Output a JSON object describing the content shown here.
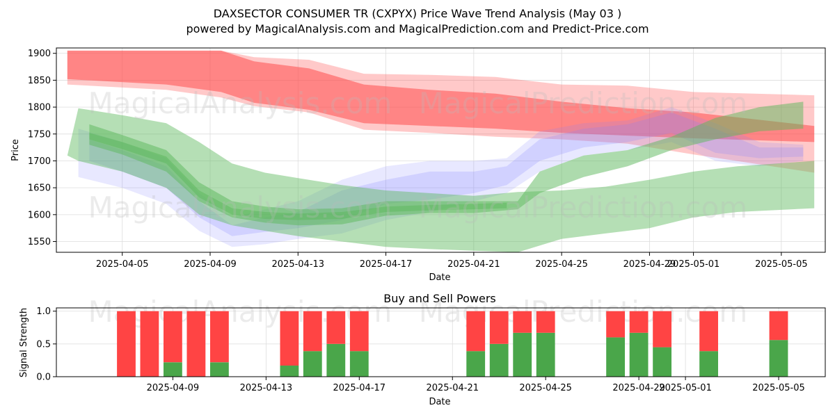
{
  "colors": {
    "red": "#ff4d4d",
    "blue": "#8080ff",
    "green": "#5cb85c",
    "bar_red": "#ff4444",
    "bar_green": "#4aa64a"
  },
  "watermarks": [
    "MagicalAnalysis.com",
    "MagicalPrediction.com"
  ],
  "chart_data": [
    {
      "type": "area",
      "title": "DAXSECTOR CONSUMER TR (CXPYX) Price Wave Trend Analysis (May 03 )",
      "subtitle": "powered by MagicalAnalysis.com and MagicalPrediction.com and Predict-Price.com",
      "xlabel": "Date",
      "ylabel": "Price",
      "xlim": [
        "2025-04-02",
        "2025-05-07"
      ],
      "ylim": [
        1530,
        1910
      ],
      "xticks": [
        "2025-04-05",
        "2025-04-09",
        "2025-04-13",
        "2025-04-17",
        "2025-04-21",
        "2025-04-25",
        "2025-04-29",
        "2025-05-01",
        "2025-05-05"
      ],
      "yticks": [
        1550,
        1600,
        1650,
        1700,
        1750,
        1800,
        1850,
        1900
      ],
      "grid": true,
      "bands": [
        {
          "color": "red",
          "opacity": 0.3,
          "x": [
            "2025-04-02.5",
            "2025-04-07",
            "2025-04-09.5",
            "2025-04-11",
            "2025-04-13.5",
            "2025-04-16",
            "2025-04-19",
            "2025-04-22",
            "2025-04-25",
            "2025-04-28",
            "2025-05-01",
            "2025-05-06.5"
          ],
          "upper": [
            1905,
            1905,
            1905,
            1893,
            1888,
            1862,
            1860,
            1856,
            1842,
            1840,
            1828,
            1822
          ],
          "lower": [
            1842,
            1832,
            1818,
            1802,
            1790,
            1758,
            1752,
            1745,
            1740,
            1732,
            1712,
            1678
          ]
        },
        {
          "color": "red",
          "opacity": 0.55,
          "x": [
            "2025-04-02.5",
            "2025-04-07",
            "2025-04-09.5",
            "2025-04-11",
            "2025-04-13.5",
            "2025-04-16",
            "2025-04-19",
            "2025-04-22",
            "2025-04-25",
            "2025-04-28",
            "2025-05-01",
            "2025-05-06.5"
          ],
          "upper": [
            1905,
            1905,
            1905,
            1885,
            1872,
            1842,
            1832,
            1825,
            1810,
            1798,
            1790,
            1765
          ],
          "lower": [
            1852,
            1842,
            1828,
            1808,
            1795,
            1770,
            1765,
            1760,
            1752,
            1747,
            1742,
            1735
          ]
        },
        {
          "color": "blue",
          "opacity": 0.18,
          "x": [
            "2025-04-03",
            "2025-04-05",
            "2025-04-07",
            "2025-04-08.5",
            "2025-04-10",
            "2025-04-11.5",
            "2025-04-13",
            "2025-04-15",
            "2025-04-17",
            "2025-04-19",
            "2025-04-21",
            "2025-04-22.5",
            "2025-04-24",
            "2025-04-26",
            "2025-04-28",
            "2025-04-30",
            "2025-05-02",
            "2025-05-04",
            "2025-05-06"
          ],
          "upper": [
            1760,
            1735,
            1705,
            1640,
            1595,
            1610,
            1625,
            1665,
            1690,
            1700,
            1700,
            1705,
            1755,
            1770,
            1775,
            1800,
            1770,
            1735,
            1730
          ],
          "lower": [
            1670,
            1650,
            1620,
            1570,
            1540,
            1545,
            1555,
            1565,
            1590,
            1605,
            1625,
            1640,
            1680,
            1710,
            1720,
            1735,
            1700,
            1690,
            1700
          ]
        },
        {
          "color": "blue",
          "opacity": 0.22,
          "x": [
            "2025-04-03.5",
            "2025-04-05",
            "2025-04-07",
            "2025-04-08.5",
            "2025-04-10",
            "2025-04-11.5",
            "2025-04-13",
            "2025-04-15",
            "2025-04-17",
            "2025-04-19",
            "2025-04-21",
            "2025-04-22.5",
            "2025-04-24",
            "2025-04-26",
            "2025-04-28",
            "2025-04-30",
            "2025-05-02",
            "2025-05-04",
            "2025-05-06"
          ],
          "upper": [
            1740,
            1720,
            1690,
            1625,
            1580,
            1595,
            1605,
            1645,
            1665,
            1680,
            1680,
            1690,
            1740,
            1760,
            1768,
            1790,
            1760,
            1725,
            1725
          ],
          "lower": [
            1700,
            1680,
            1650,
            1595,
            1560,
            1568,
            1575,
            1590,
            1620,
            1628,
            1640,
            1655,
            1700,
            1725,
            1735,
            1752,
            1715,
            1705,
            1708
          ]
        },
        {
          "color": "green",
          "opacity": 0.45,
          "x": [
            "2025-04-02.5",
            "2025-04-03",
            "2025-04-05",
            "2025-04-07",
            "2025-04-08.5",
            "2025-04-10",
            "2025-04-11.5",
            "2025-04-13",
            "2025-04-15",
            "2025-04-17",
            "2025-04-19",
            "2025-04-21",
            "2025-04-23",
            "2025-04-25",
            "2025-04-27",
            "2025-04-29",
            "2025-05-01",
            "2025-05-03",
            "2025-05-06.5"
          ],
          "upper": [
            1710,
            1798,
            1785,
            1770,
            1735,
            1695,
            1678,
            1668,
            1655,
            1645,
            1640,
            1635,
            1642,
            1645,
            1652,
            1665,
            1680,
            1690,
            1700
          ],
          "lower": [
            1710,
            1700,
            1680,
            1650,
            1600,
            1580,
            1570,
            1560,
            1550,
            1540,
            1536,
            1533,
            1530,
            1555,
            1565,
            1575,
            1595,
            1605,
            1612
          ]
        },
        {
          "color": "green",
          "opacity": 0.5,
          "x": [
            "2025-04-03.5",
            "2025-04-05",
            "2025-04-07",
            "2025-04-08.5",
            "2025-04-10",
            "2025-04-11.5",
            "2025-04-13",
            "2025-04-15",
            "2025-04-17",
            "2025-04-19",
            "2025-04-21",
            "2025-04-23",
            "2025-04-24",
            "2025-04-26",
            "2025-04-28",
            "2025-04-30",
            "2025-05-02",
            "2025-05-04",
            "2025-05-06"
          ],
          "upper": [
            1768,
            1748,
            1720,
            1660,
            1625,
            1615,
            1610,
            1612,
            1625,
            1625,
            1625,
            1625,
            1680,
            1710,
            1720,
            1745,
            1780,
            1800,
            1810
          ],
          "lower": [
            1730,
            1712,
            1680,
            1625,
            1595,
            1585,
            1580,
            1582,
            1598,
            1603,
            1603,
            1610,
            1640,
            1670,
            1690,
            1720,
            1740,
            1755,
            1760
          ]
        },
        {
          "color": "green",
          "opacity": 0.5,
          "x": [
            "2025-04-03.5",
            "2025-04-05",
            "2025-04-07",
            "2025-04-08.5",
            "2025-04-10",
            "2025-04-11.5",
            "2025-04-13",
            "2025-04-15",
            "2025-04-17",
            "2025-04-19",
            "2025-04-21",
            "2025-04-22.5"
          ],
          "upper": [
            1752,
            1735,
            1708,
            1645,
            1612,
            1605,
            1602,
            1605,
            1615,
            1618,
            1620,
            1622
          ],
          "lower": [
            1740,
            1722,
            1695,
            1632,
            1600,
            1592,
            1590,
            1592,
            1605,
            1608,
            1610,
            1612
          ]
        }
      ]
    },
    {
      "type": "bar",
      "title": "Buy and Sell Powers",
      "xlabel": "Date",
      "ylabel": "Signal Strength",
      "xlim": [
        "2025-04-04",
        "2025-05-07"
      ],
      "ylim": [
        0,
        1.05
      ],
      "xticks": [
        "2025-04-09",
        "2025-04-13",
        "2025-04-17",
        "2025-04-21",
        "2025-04-25",
        "2025-04-29",
        "2025-05-01",
        "2025-05-05"
      ],
      "yticks": [
        "0.0",
        "0.5",
        "1.0"
      ],
      "grid": true,
      "categories": [
        "2025-04-07",
        "2025-04-08",
        "2025-04-09",
        "2025-04-10",
        "2025-04-11",
        "2025-04-14",
        "2025-04-15",
        "2025-04-16",
        "2025-04-17",
        "2025-04-22",
        "2025-04-23",
        "2025-04-24",
        "2025-04-25",
        "2025-04-28",
        "2025-04-29",
        "2025-04-30",
        "2025-05-02",
        "2025-05-05"
      ],
      "series": [
        {
          "name": "Buy",
          "color": "bar_green",
          "values": [
            0,
            0,
            0.22,
            0,
            0.22,
            0.17,
            0.39,
            0.5,
            0.39,
            0.39,
            0.5,
            0.67,
            0.67,
            0.6,
            0.67,
            0.45,
            0.39,
            0.56
          ]
        },
        {
          "name": "Sell",
          "color": "bar_red",
          "values": [
            1,
            1,
            0.78,
            1,
            0.78,
            0.83,
            0.61,
            0.5,
            0.61,
            0.61,
            0.5,
            0.33,
            0.33,
            0.4,
            0.33,
            0.55,
            0.61,
            0.44
          ]
        }
      ]
    }
  ]
}
